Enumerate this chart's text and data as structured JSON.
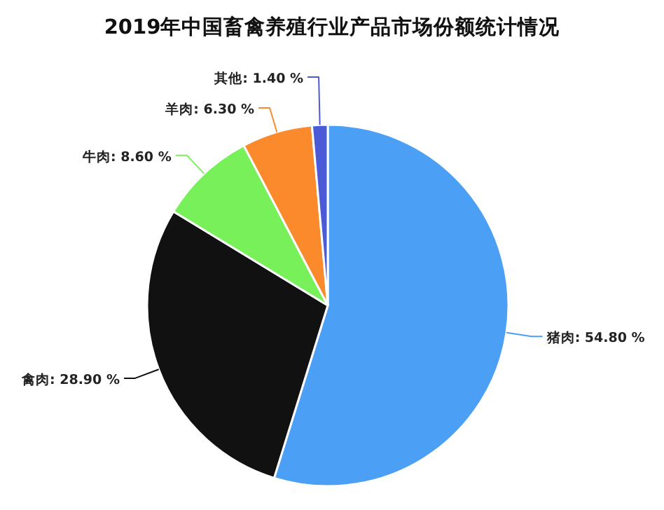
{
  "chart_data": {
    "type": "pie",
    "title": "2019年中国畜禽养殖行业产品市场份额统计情况",
    "categories": [
      "猪肉",
      "禽肉",
      "牛肉",
      "羊肉",
      "其他"
    ],
    "values": [
      54.8,
      28.9,
      8.6,
      6.3,
      1.4
    ],
    "value_labels": [
      "54.80 %",
      "28.90 %",
      "8.60 %",
      "6.30 %",
      "1.40 %"
    ],
    "colors": [
      "#4b9ff4",
      "#111111",
      "#78f05a",
      "#fb8a2c",
      "#4b5bd8"
    ]
  }
}
